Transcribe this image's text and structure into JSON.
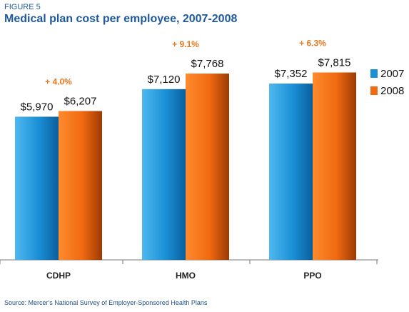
{
  "figure_label": "FIGURE 5",
  "title": "Medical plan cost per employee, 2007-2008",
  "source": "Source: Mercer's National Survey of Employer-Sponsored Health Plans",
  "chart_data": {
    "type": "bar",
    "categories": [
      "CDHP",
      "HMO",
      "PPO"
    ],
    "series": [
      {
        "name": "2007",
        "values": [
          5970,
          7120,
          7352
        ],
        "labels": [
          "$5,970",
          "$7,120",
          "$7,352"
        ],
        "color": "#1a8fd6"
      },
      {
        "name": "2008",
        "values": [
          6207,
          7768,
          7815
        ],
        "labels": [
          "$6,207",
          "$7,768",
          "$7,815"
        ],
        "color": "#f06a10"
      }
    ],
    "annotations": [
      "+ 4.0%",
      "+ 9.1%",
      "+ 6.3%"
    ],
    "annotation_color": "#e8771e",
    "legend_position": "right",
    "ylim": [
      0,
      10300
    ],
    "grid": false
  }
}
